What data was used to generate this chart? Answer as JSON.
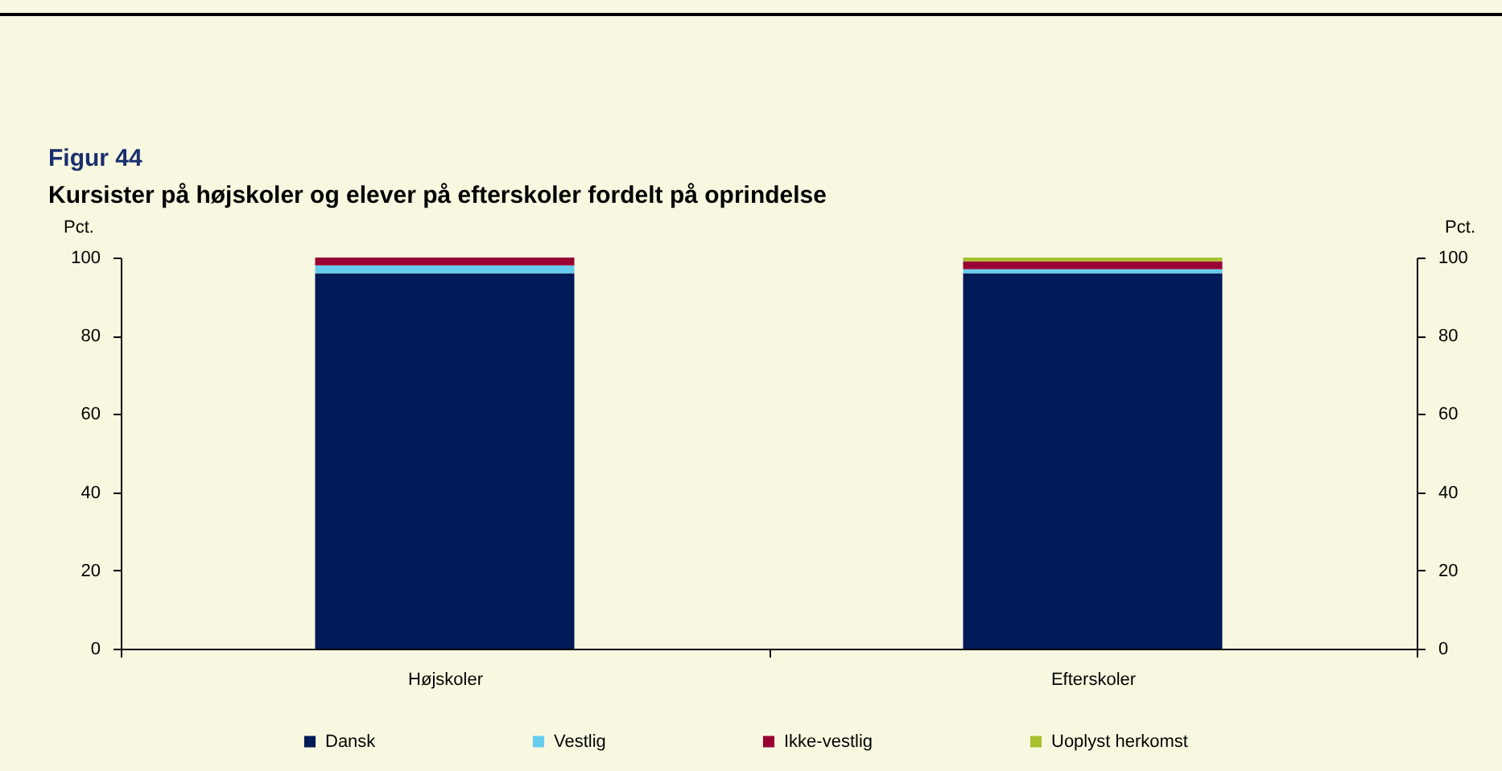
{
  "chart_data": {
    "type": "bar",
    "title": "Figur 44",
    "subtitle": "Kursister på højskoler og elever på efterskoler fordelt på oprindelse",
    "ylabel": "Pct.",
    "y2label": "Pct.",
    "categories": [
      "Højskoler",
      "Efterskoler"
    ],
    "stacked": true,
    "series": [
      {
        "name": "Dansk",
        "color": "#001a57",
        "values": [
          96,
          96
        ]
      },
      {
        "name": "Vestlig",
        "color": "#66ccee",
        "values": [
          2,
          1
        ]
      },
      {
        "name": "Ikke-vestlig",
        "color": "#990033",
        "values": [
          2,
          2
        ]
      },
      {
        "name": "Uoplyst herkomst",
        "color": "#a8c030",
        "values": [
          0,
          1
        ]
      }
    ],
    "ylim": [
      0,
      100
    ],
    "yticks": [
      0,
      20,
      40,
      60,
      80,
      100
    ],
    "y2lim": [
      0,
      100
    ],
    "y2ticks": [
      0,
      20,
      40,
      60,
      80,
      100
    ],
    "grid": false,
    "legend": "bottom"
  }
}
